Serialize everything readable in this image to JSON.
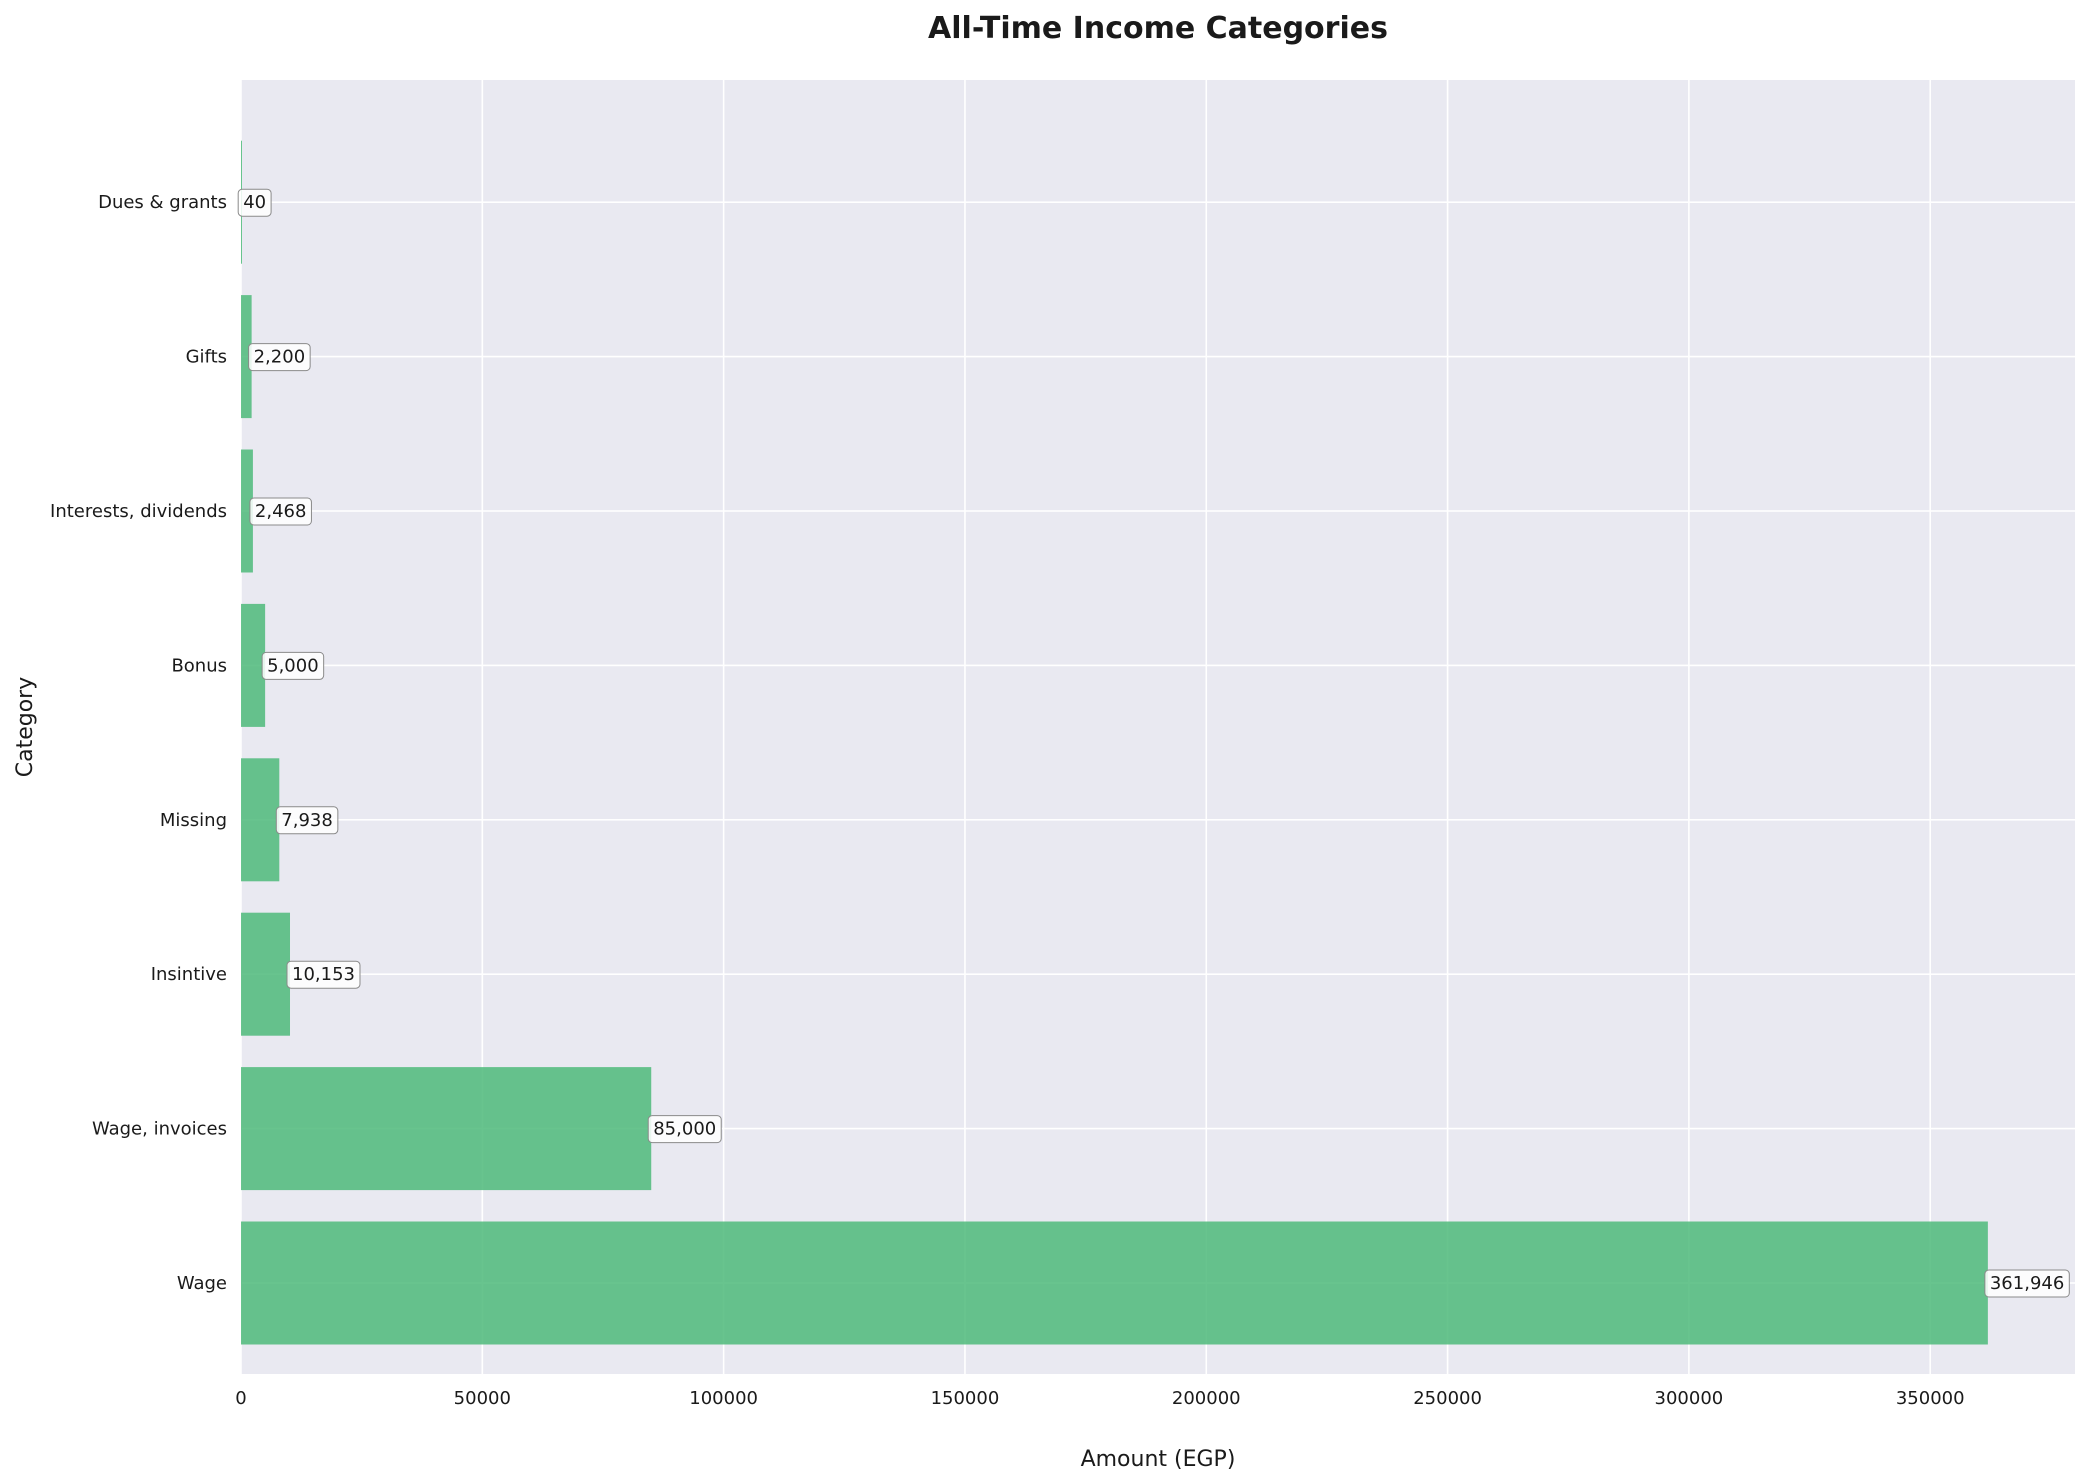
{
  "chart_data": {
    "type": "bar",
    "orientation": "horizontal",
    "title": "All-Time Income Categories",
    "xlabel": "Amount (EGP)",
    "ylabel": "Category",
    "categories": [
      "Wage",
      "Wage, invoices",
      "Insintive",
      "Missing",
      "Bonus",
      "Interests, dividends",
      "Gifts",
      "Dues & grants"
    ],
    "values": [
      361946,
      85000,
      10153,
      7938,
      5000,
      2468,
      2200,
      40
    ],
    "data_labels": [
      "361,946",
      "85,000",
      "10,153",
      "7,938",
      "5,000",
      "2,468",
      "2,200",
      "40"
    ],
    "xlim": [
      0,
      380000
    ],
    "xticks": [
      0,
      50000,
      100000,
      150000,
      200000,
      250000,
      300000,
      350000
    ],
    "xtick_labels": [
      "0",
      "50000",
      "100000",
      "150000",
      "200000",
      "250000",
      "300000",
      "350000"
    ],
    "grid": true,
    "legend": "none",
    "colors": {
      "bar": "#4dba7a",
      "plot_background": "#e9e9f1",
      "grid": "#ffffff",
      "label_box_fill": "#ffffff",
      "label_box_stroke": "#8a8a8a"
    }
  }
}
